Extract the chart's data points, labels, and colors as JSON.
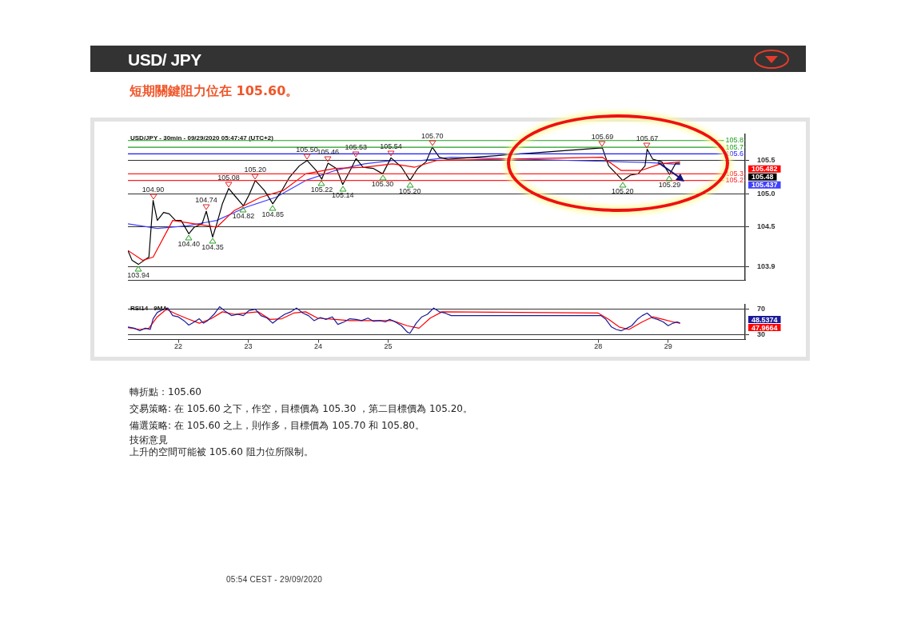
{
  "chart_data": [
    {
      "type": "other",
      "title": "USD/ JPY",
      "subtitle": "短期關鍵阻力位在 105.60。"
    },
    {
      "type": "line",
      "title": "USD/JPY - 30min - 09/29/2020 05:47:47 (UTC+2)",
      "xlim": [
        21.28,
        30.1
      ],
      "ylim": [
        103.7,
        105.9
      ],
      "yticks": [
        103.9,
        104.5,
        {
          "value": 105,
          "label": "105.0"
        },
        105.5
      ],
      "tick_labels": "y",
      "grid": "y",
      "legend": false,
      "series": [
        {
          "color": "#ff0000",
          "x": [
            21.28,
            21.49,
            21.64,
            21.92,
            22.23,
            22.55,
            22.8,
            23.18,
            23.5,
            23.82,
            24.24,
            24.66,
            25.06,
            25.38,
            25.69,
            28.06,
            28.33,
            28.61,
            28.89,
            29.17
          ],
          "values": [
            104.15,
            104.0,
            104.05,
            104.6,
            104.55,
            104.5,
            104.75,
            104.95,
            105.05,
            105.3,
            105.38,
            105.4,
            105.45,
            105.4,
            105.5,
            105.55,
            105.35,
            105.35,
            105.45,
            105.48
          ]
        },
        {
          "color": "#000000",
          "x": [
            21.28,
            21.34,
            21.43,
            21.51,
            21.58,
            21.64,
            21.7,
            21.79,
            21.87,
            21.96,
            22.04,
            22.15,
            22.23,
            22.34,
            22.4,
            22.49,
            22.55,
            22.63,
            22.72,
            22.8,
            22.93,
            23.01,
            23.1,
            23.23,
            23.35,
            23.48,
            23.59,
            23.73,
            23.84,
            23.97,
            24.05,
            24.14,
            24.26,
            24.35,
            24.47,
            24.54,
            24.64,
            24.79,
            24.92,
            25.04,
            25.19,
            25.31,
            25.42,
            25.54,
            25.63,
            25.73,
            25.85,
            28.06,
            28.15,
            28.26,
            28.35,
            28.46,
            28.57,
            28.67,
            28.7,
            28.78,
            28.91,
            29.02,
            29.11,
            29.17
          ],
          "values": [
            104.15,
            104.0,
            103.94,
            104.0,
            104.05,
            104.9,
            104.6,
            104.72,
            104.7,
            104.6,
            104.6,
            104.4,
            104.5,
            104.55,
            104.74,
            104.35,
            104.55,
            104.85,
            105.08,
            104.98,
            104.82,
            104.98,
            105.2,
            105.05,
            104.85,
            105.05,
            105.25,
            105.42,
            105.5,
            105.35,
            105.22,
            105.46,
            105.38,
            105.14,
            105.38,
            105.53,
            105.4,
            105.38,
            105.3,
            105.54,
            105.4,
            105.2,
            105.38,
            105.48,
            105.7,
            105.55,
            105.52,
            105.69,
            105.42,
            105.3,
            105.2,
            105.28,
            105.3,
            105.42,
            105.67,
            105.52,
            105.48,
            105.29,
            105.46,
            105.46
          ]
        },
        {
          "color": "#4040ff",
          "x": [
            21.28,
            21.7,
            22.13,
            22.55,
            22.97,
            23.4,
            23.82,
            24.24,
            24.66,
            25.06,
            25.48,
            25.9,
            28.33,
            28.7,
            29.17
          ],
          "values": [
            104.55,
            104.48,
            104.52,
            104.6,
            104.8,
            104.95,
            105.2,
            105.35,
            105.45,
            105.5,
            105.5,
            105.55,
            105.48,
            105.47,
            105.44
          ]
        }
      ],
      "ref_lines": [
        {
          "axis": "y",
          "value": 105.8,
          "label": "105.8",
          "color": "#1e9e1e"
        },
        {
          "axis": "y",
          "value": 105.7,
          "label": "105.7",
          "color": "#1e9e1e"
        },
        {
          "axis": "y",
          "value": 105.6,
          "label": "105.6",
          "color": "#1a1aff"
        },
        {
          "axis": "y",
          "value": 105.3,
          "label": "105.3",
          "color": "#ff2020"
        },
        {
          "axis": "y",
          "value": 105.2,
          "label": "105.2",
          "color": "#ff2020"
        }
      ],
      "annotations": [
        {
          "text": "103.94",
          "x": 21.43,
          "y": 103.94
        },
        {
          "text": "104.90",
          "x": 21.64,
          "y": 104.9
        },
        {
          "text": "104.40",
          "x": 22.15,
          "y": 104.4
        },
        {
          "text": "104.74",
          "x": 22.4,
          "y": 104.74
        },
        {
          "text": "104.35",
          "x": 22.49,
          "y": 104.35
        },
        {
          "text": "105.08",
          "x": 22.72,
          "y": 105.08
        },
        {
          "text": "104.82",
          "x": 22.93,
          "y": 104.82
        },
        {
          "text": "105.20",
          "x": 23.1,
          "y": 105.2
        },
        {
          "text": "104.85",
          "x": 23.35,
          "y": 104.85
        },
        {
          "text": "105.50",
          "x": 23.84,
          "y": 105.5
        },
        {
          "text": "105.22",
          "x": 24.05,
          "y": 105.22
        },
        {
          "text": "105.46",
          "x": 24.14,
          "y": 105.46
        },
        {
          "text": "105.14",
          "x": 24.35,
          "y": 105.14
        },
        {
          "text": "105.53",
          "x": 24.54,
          "y": 105.53
        },
        {
          "text": "105.30",
          "x": 24.92,
          "y": 105.3
        },
        {
          "text": "105.54",
          "x": 25.04,
          "y": 105.54
        },
        {
          "text": "105.20",
          "x": 25.31,
          "y": 105.2
        },
        {
          "text": "105.70",
          "x": 25.63,
          "y": 105.7
        },
        {
          "text": "105.69",
          "x": 28.06,
          "y": 105.69
        },
        {
          "text": "105.20",
          "x": 28.35,
          "y": 105.2
        },
        {
          "text": "105.67",
          "x": 28.7,
          "y": 105.67
        },
        {
          "text": "105.29",
          "x": 29.02,
          "y": 105.29
        },
        "105.482",
        "105.48",
        "105.437"
      ]
    },
    {
      "type": "line",
      "title": "RSI14 - 9MA",
      "xlim": [
        21.28,
        30.1
      ],
      "xticks": [
        22,
        23,
        24,
        25,
        28,
        29
      ],
      "ylim": [
        22,
        78
      ],
      "yticks": [
        30,
        70
      ],
      "grid": "y",
      "legend": false,
      "series": [
        {
          "color": "#1a1a99",
          "x": [
            21.28,
            21.37,
            21.45,
            21.53,
            21.6,
            21.64,
            21.7,
            21.79,
            21.85,
            21.92,
            22.0,
            22.08,
            22.15,
            22.23,
            22.3,
            22.36,
            22.42,
            22.51,
            22.59,
            22.68,
            22.76,
            22.85,
            22.93,
            23.01,
            23.1,
            23.18,
            23.27,
            23.35,
            23.44,
            23.52,
            23.61,
            23.69,
            23.78,
            23.86,
            23.94,
            24.03,
            24.11,
            24.2,
            24.28,
            24.37,
            24.45,
            24.54,
            24.62,
            24.71,
            24.79,
            24.88,
            24.96,
            25.02,
            25.1,
            25.19,
            25.27,
            25.31,
            25.4,
            25.48,
            25.56,
            25.65,
            25.73,
            25.81,
            25.9,
            28.04,
            28.11,
            28.19,
            28.26,
            28.33,
            28.41,
            28.48,
            28.56,
            28.63,
            28.7,
            28.78,
            28.85,
            28.93,
            29.0,
            29.07,
            29.13,
            29.17
          ],
          "values": [
            42,
            40,
            36,
            40,
            38,
            55,
            65,
            70,
            72,
            60,
            58,
            52,
            45,
            50,
            55,
            48,
            52,
            62,
            74,
            66,
            60,
            62,
            60,
            68,
            70,
            60,
            56,
            48,
            56,
            62,
            66,
            72,
            64,
            60,
            52,
            57,
            54,
            58,
            46,
            50,
            55,
            54,
            52,
            56,
            51,
            52,
            50,
            54,
            50,
            44,
            34,
            32,
            48,
            58,
            62,
            72,
            66,
            64,
            60,
            60,
            54,
            42,
            38,
            36,
            40,
            44,
            54,
            60,
            64,
            56,
            54,
            50,
            44,
            48,
            50,
            48
          ]
        },
        {
          "color": "#ff0000",
          "x": [
            21.28,
            21.45,
            21.58,
            21.7,
            21.83,
            21.96,
            22.13,
            22.3,
            22.47,
            22.63,
            22.8,
            22.97,
            23.14,
            23.31,
            23.48,
            23.65,
            23.82,
            23.99,
            24.24,
            24.45,
            24.66,
            24.88,
            25.06,
            25.27,
            25.44,
            25.6,
            25.77,
            28.0,
            28.15,
            28.3,
            28.44,
            28.63,
            28.78,
            28.93,
            29.07,
            29.17
          ],
          "values": [
            41,
            38,
            40,
            58,
            70,
            63,
            55,
            48,
            55,
            66,
            62,
            64,
            66,
            54,
            55,
            64,
            66,
            56,
            54,
            52,
            52,
            52,
            52,
            44,
            40,
            56,
            66,
            64,
            54,
            42,
            38,
            50,
            58,
            54,
            50,
            48
          ]
        }
      ],
      "annotations": [
        "48.5374",
        "47.9664"
      ]
    },
    {
      "type": "other",
      "annotations": [
        "轉折點：105.60",
        "交易策略: 在 105.60 之下，作空，目標價為  105.30 ，第二目標價為  105.20。",
        "備選策略: 在 105.60 之上，則作多，目標價為  105.70 和 105.80。",
        "技術意見",
        "上升的空間可能被  105.60 阻力位所限制。",
        "05:54 CEST - 29/09/2020"
      ]
    }
  ]
}
